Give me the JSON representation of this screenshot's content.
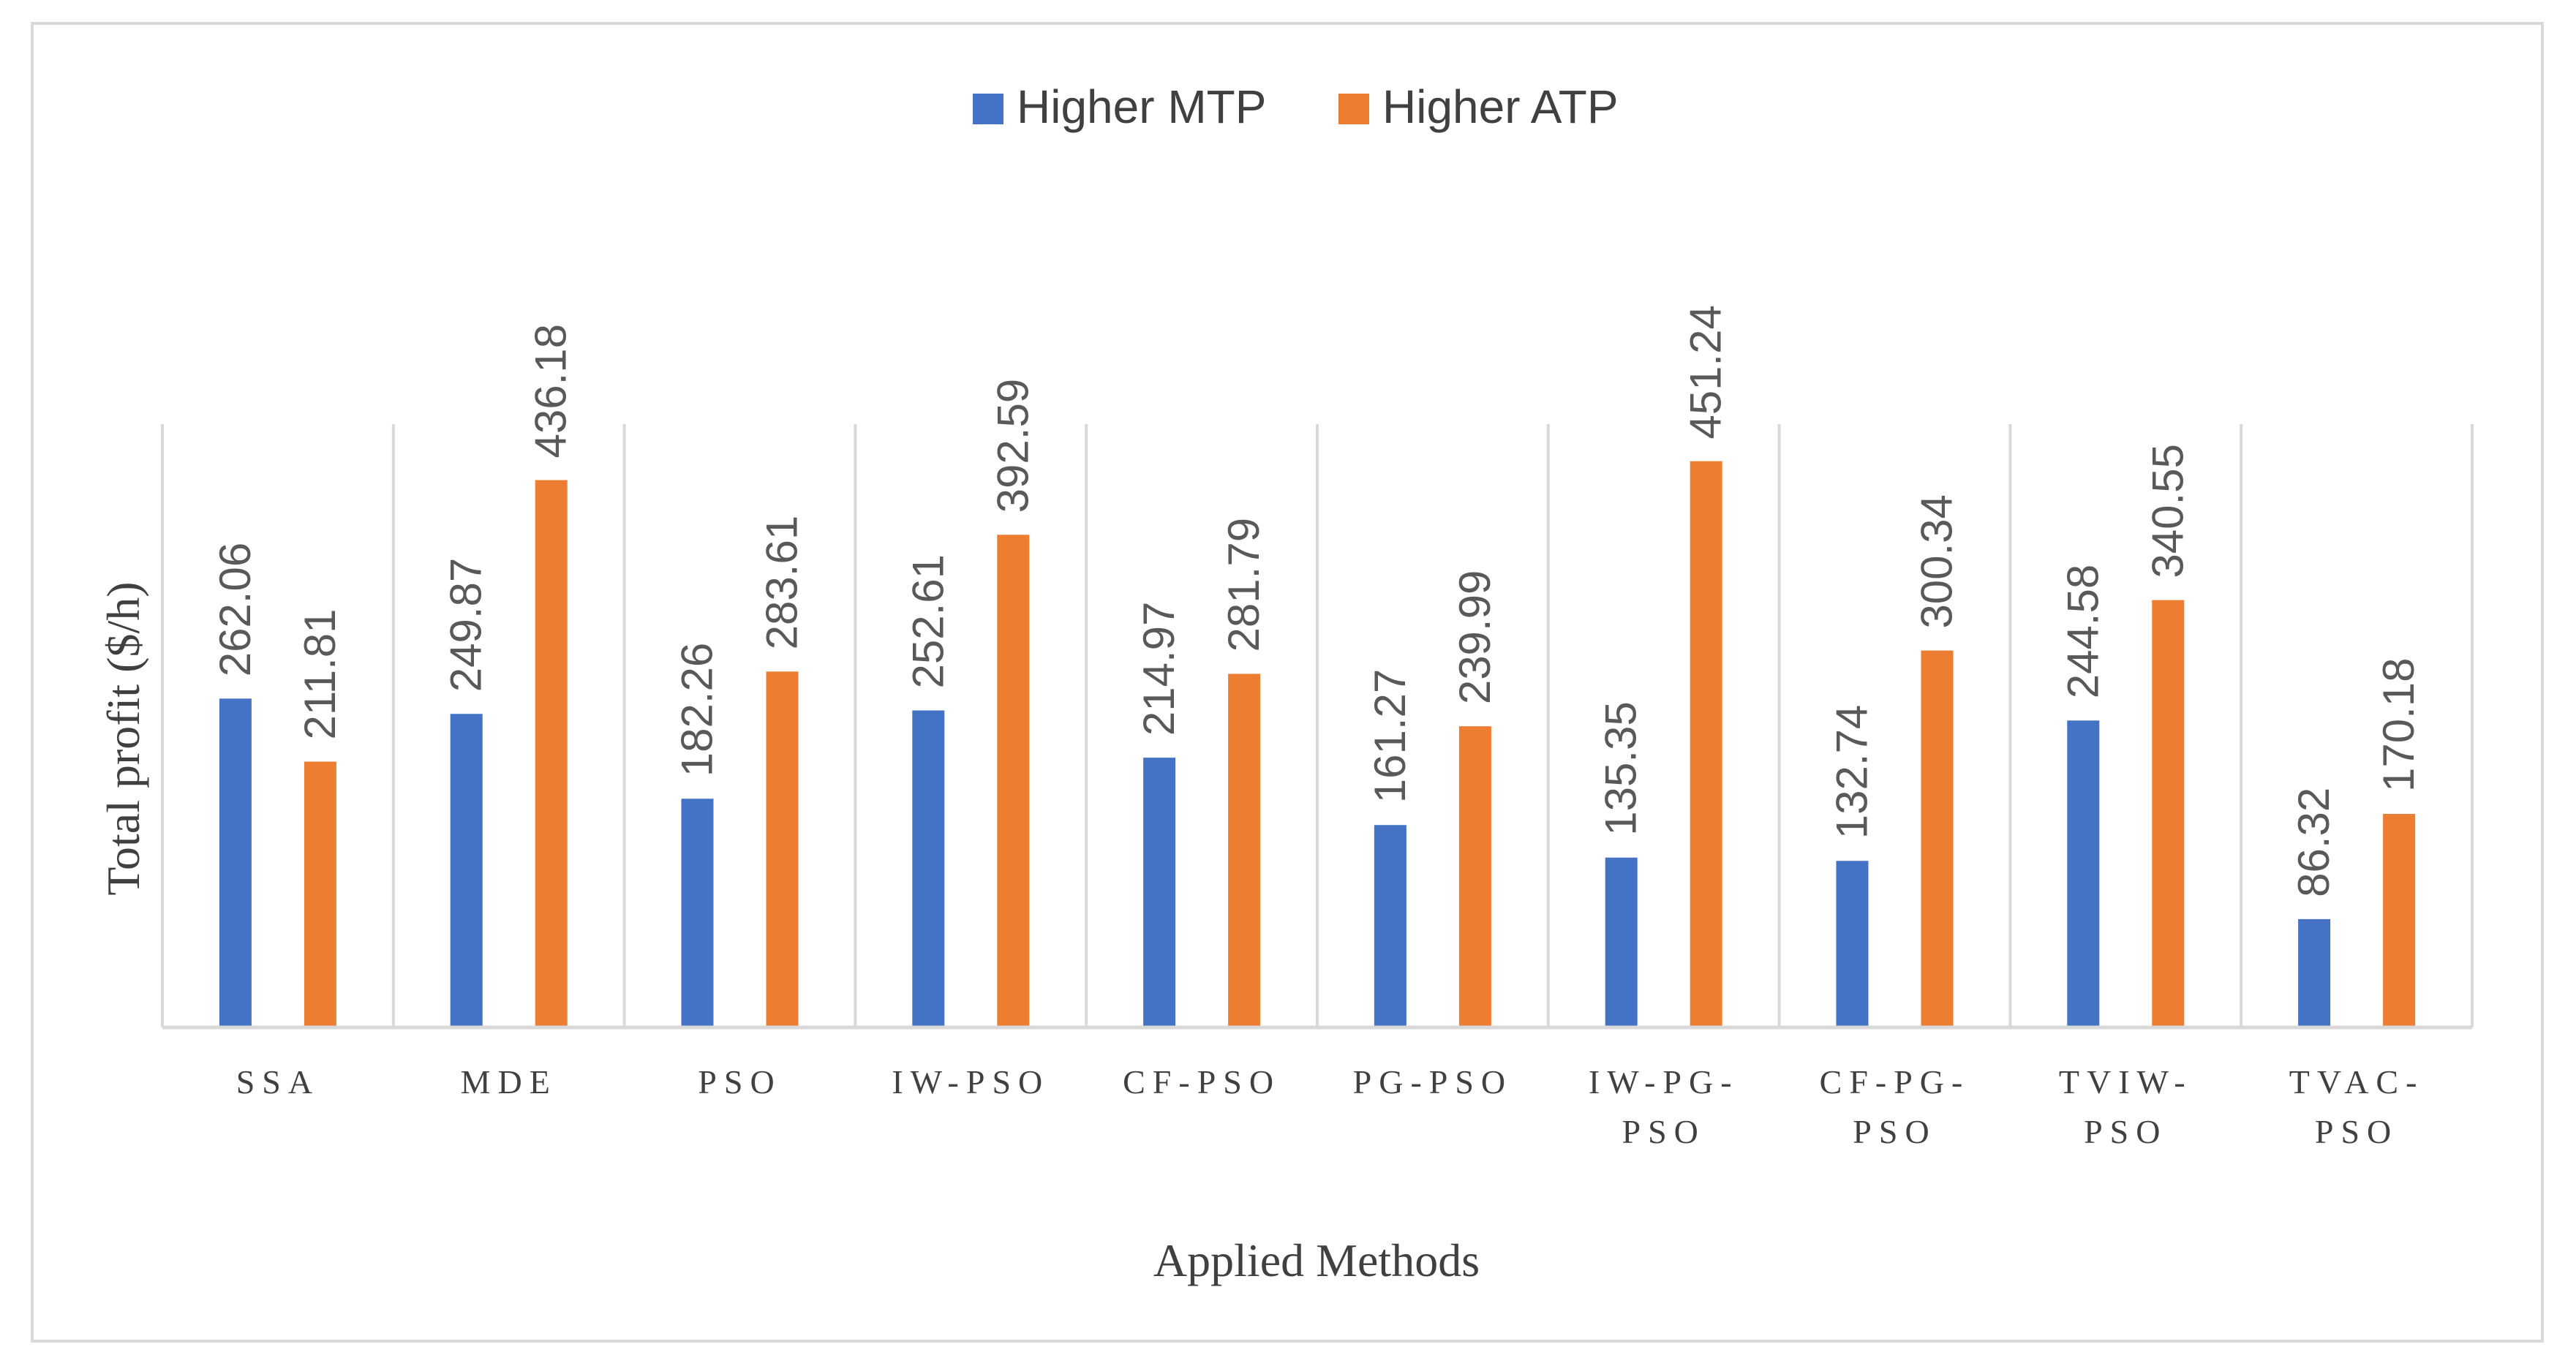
{
  "chart_data": {
    "type": "bar",
    "title": "",
    "xlabel": "Applied Methods",
    "ylabel": "Total profit ($/h)",
    "ylim": [
      0,
      500
    ],
    "grid": "vertical category separators",
    "legend": "top-center",
    "categories": [
      [
        "SSA"
      ],
      [
        "MDE"
      ],
      [
        "PSO"
      ],
      [
        "IW-PSO"
      ],
      [
        "CF-PSO"
      ],
      [
        "PG-PSO"
      ],
      [
        "IW-PG-",
        "PSO"
      ],
      [
        "CF-PG-",
        "PSO"
      ],
      [
        "TVIW-",
        "PSO"
      ],
      [
        "TVAC-",
        "PSO"
      ]
    ],
    "series": [
      {
        "name": "Higher MTP",
        "color": "#4472c4",
        "values": [
          262.06,
          249.87,
          182.26,
          252.61,
          214.97,
          161.27,
          135.35,
          132.74,
          244.58,
          86.32
        ],
        "labels": [
          "262.06",
          "249.87",
          "182.26",
          "252.61",
          "214.97",
          "161.27",
          "135.35",
          "132.74",
          "244.58",
          "86.32"
        ]
      },
      {
        "name": "Higher ATP",
        "color": "#ed7d31",
        "values": [
          211.81,
          436.18,
          283.61,
          392.59,
          281.79,
          239.99,
          451.24,
          300.34,
          340.55,
          170.18
        ],
        "labels": [
          "211.81",
          "436.18",
          "283.61",
          "392.59",
          "281.79",
          "239.99",
          "451.24",
          "300.34",
          "340.55",
          "170.18"
        ]
      }
    ]
  }
}
